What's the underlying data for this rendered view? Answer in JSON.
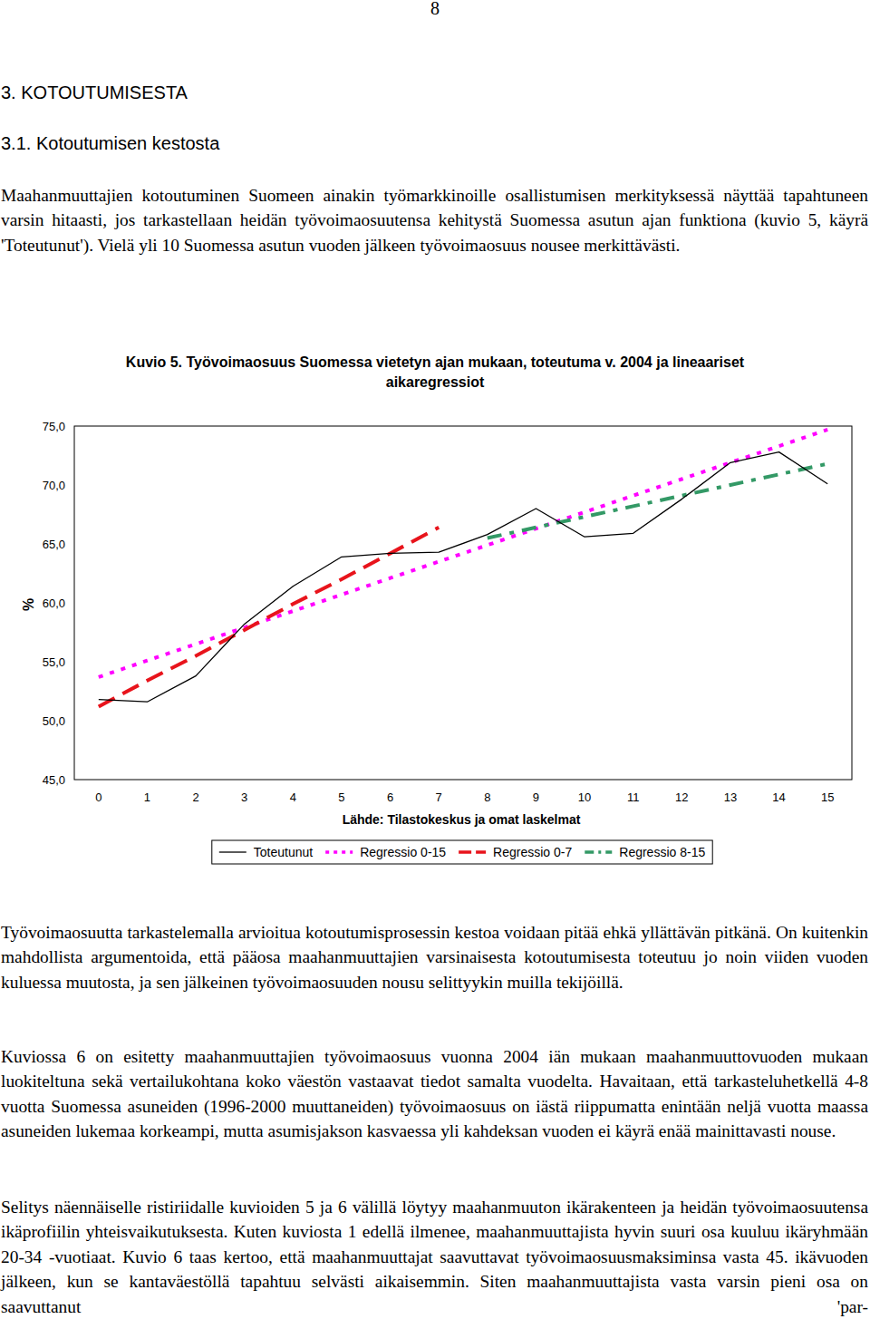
{
  "page": {
    "page_number": "8",
    "heading": "3. KOTOUTUMISESTA",
    "subheading": "3.1. Kotoutumisen kestosta",
    "paragraphs_before": [
      "Maahanmuuttajien kotoutuminen Suomeen ainakin työmarkkinoille osallistumisen merkityksessä näyttää tapahtuneen varsin hitaasti, jos tarkastellaan heidän työvoimaosuutensa kehitystä Suomessa asutun ajan funktiona (kuvio 5, käyrä 'Toteutunut'). Vielä yli 10 Suomessa asutun vuoden jälkeen työvoimaosuus nousee merkittävästi."
    ],
    "paragraphs_after": [
      "Työvoimaosuutta tarkastelemalla arvioitua kotoutumisprosessin kestoa voidaan pitää ehkä yllättä­vän pitkänä. On kuitenkin mahdollista argumentoida, että pääosa maahanmuuttajien varsinaisesta kotoutumisesta toteutuu jo noin viiden vuoden kuluessa muutosta, ja sen jälkeinen työvoimaosuu­den nousu selittyykin muilla tekijöillä.",
      "Kuviossa 6 on esitetty maahanmuuttajien työvoimaosuus vuonna 2004 iän mukaan maahanmuutto­vuoden mukaan luokiteltuna sekä vertailukohtana koko väestön vastaavat tiedot samalta vuodelta. Havaitaan, että tarkasteluhetkellä 4-8 vuotta Suomessa asuneiden (1996-2000 muuttaneiden) työ­voimaosuus on iästä riippumatta enintään neljä vuotta maassa asuneiden lukemaa korkeampi, mutta asumisjakson kasvaessa yli kahdeksan vuoden ei käyrä enää mainittavasti nouse.",
      "Selitys näennäiselle ristiriidalle kuvioiden 5 ja 6 välillä löytyy maahanmuuton ikärakenteen ja hei­dän työvoimaosuutensa ikäprofiilin yhteisvaikutuksesta. Kuten kuviosta 1 edellä ilmenee, maahan­muuttajista hyvin suuri osa kuuluu ikäryhmään 20-34 -vuotiaat. Kuvio 6 taas kertoo, että maahan­muuttajat saavuttavat työvoimaosuusmaksiminsa vasta 45. ikävuoden jälkeen, kun se kantaväestöllä tapahtuu selvästi aikaisemmin. Siten maahanmuuttajista vasta varsin pieni osa on saavuttanut 'par-"
    ]
  },
  "chart_data": {
    "type": "line",
    "title": "Kuvio 5. Työvoimaosuus Suomessa vietetyn ajan mukaan, toteutuma v. 2004 ja lineaariset aikaregressiot",
    "xlabel": "Lähde: Tilastokeskus ja omat laskelmat",
    "ylabel": "%",
    "x": [
      0,
      1,
      2,
      3,
      4,
      5,
      6,
      7,
      8,
      9,
      10,
      11,
      12,
      13,
      14,
      15
    ],
    "xlim": [
      -0.5,
      15.5
    ],
    "xticks": [
      0,
      1,
      2,
      3,
      4,
      5,
      6,
      7,
      8,
      9,
      10,
      11,
      12,
      13,
      14,
      15
    ],
    "ylim": [
      45,
      75
    ],
    "yticks": [
      {
        "value": 45,
        "label": "45,0"
      },
      {
        "value": 50,
        "label": "50,0"
      },
      {
        "value": 55,
        "label": "55,0"
      },
      {
        "value": 60,
        "label": "60,0"
      },
      {
        "value": 65,
        "label": "65,0"
      },
      {
        "value": 70,
        "label": "70,0"
      },
      {
        "value": 75,
        "label": "75,0"
      }
    ],
    "grid": false,
    "legend": "bottom",
    "series": [
      {
        "name": "Toteutunut",
        "color": "#000000",
        "line_style": "solid",
        "values": [
          51.8,
          51.6,
          53.8,
          58.2,
          61.4,
          63.9,
          64.2,
          64.3,
          65.8,
          68.0,
          65.6,
          65.9,
          68.8,
          71.9,
          72.8,
          70.1
        ]
      },
      {
        "name": "Regressio 0-15",
        "color": "#ff00ff",
        "line_style": "dotted",
        "values": [
          53.7,
          55.1,
          56.5,
          57.9,
          59.3,
          60.7,
          62.1,
          63.5,
          64.9,
          66.3,
          67.7,
          69.1,
          70.5,
          71.9,
          73.3,
          74.7
        ]
      },
      {
        "name": "Regressio 0-7",
        "color": "#e8141c",
        "line_style": "dashed",
        "values": [
          51.2,
          53.4,
          55.5,
          57.7,
          59.9,
          62.0,
          64.2,
          66.4,
          null,
          null,
          null,
          null,
          null,
          null,
          null,
          null
        ]
      },
      {
        "name": "Regressio 8-15",
        "color": "#339966",
        "line_style": "dash-dot",
        "values": [
          null,
          null,
          null,
          null,
          null,
          null,
          null,
          null,
          65.5,
          66.4,
          67.3,
          68.2,
          69.1,
          70.0,
          70.9,
          71.8
        ]
      }
    ]
  }
}
